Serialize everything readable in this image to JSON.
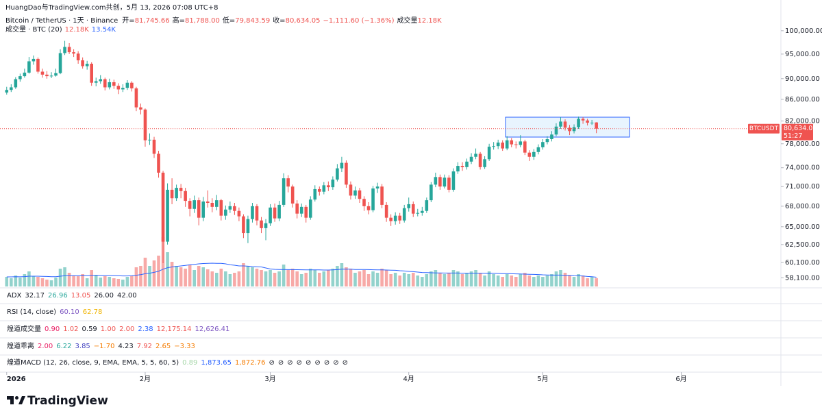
{
  "header": {
    "attribution": "HuangDao与TradingView.com共创，5月 13, 2026 07:08 UTC+8",
    "symbol": "Bitcoin / TetherUS · 1天 · Binance",
    "ohlc": [
      {
        "label": "开=",
        "value": "81,745.66"
      },
      {
        "label": "高=",
        "value": "81,788.00"
      },
      {
        "label": "低=",
        "value": "79,843.59"
      },
      {
        "label": "收=",
        "value": "80,634.05"
      }
    ],
    "change": "−1,111.60 (−1.36%)",
    "volume_label": "成交量",
    "volume": "12.18K"
  },
  "volume_legend": {
    "name": "成交量 · BTC (20)",
    "value": "12.18K",
    "ma": "13.54K"
  },
  "indicators": [
    {
      "name": "ADX",
      "values": [
        {
          "text": "32.17",
          "color": "#131722"
        },
        {
          "text": "26.96",
          "color": "#26a69a"
        },
        {
          "text": "13.05",
          "color": "#ef5350"
        },
        {
          "text": "26.00",
          "color": "#131722"
        },
        {
          "text": "42.00",
          "color": "#131722"
        }
      ]
    },
    {
      "name": "RSI (14, close)",
      "values": [
        {
          "text": "60.10",
          "color": "#7e57c2"
        },
        {
          "text": "62.78",
          "color": "#f0b400"
        }
      ]
    },
    {
      "name": "煌道成交量",
      "values": [
        {
          "text": "0.90",
          "color": "#e91e63"
        },
        {
          "text": "1.02",
          "color": "#ef5350"
        },
        {
          "text": "0.59",
          "color": "#131722"
        },
        {
          "text": "1.00",
          "color": "#ef5350"
        },
        {
          "text": "2.00",
          "color": "#ef5350"
        },
        {
          "text": "2.38",
          "color": "#2962ff"
        },
        {
          "text": "12,175.14",
          "color": "#ef5350"
        },
        {
          "text": "12,626.41",
          "color": "#7e57c2"
        }
      ]
    },
    {
      "name": "煌道乖离",
      "values": [
        {
          "text": "2.00",
          "color": "#e91e63"
        },
        {
          "text": "6.22",
          "color": "#26a69a"
        },
        {
          "text": "3.85",
          "color": "#3f3fbf"
        },
        {
          "text": "−1.70",
          "color": "#f57c00"
        },
        {
          "text": "4.23",
          "color": "#131722"
        },
        {
          "text": "7.92",
          "color": "#ef5350"
        },
        {
          "text": "2.65",
          "color": "#f57c00"
        },
        {
          "text": "−3.33",
          "color": "#f57c00"
        }
      ]
    },
    {
      "name": "煌道MACD (12, 26, close, 9, EMA, EMA, 5, 5, 60, 5)",
      "values": [
        {
          "text": "0.89",
          "color": "#a5d6a7"
        },
        {
          "text": "1,873.65",
          "color": "#2962ff"
        },
        {
          "text": "1,872.76",
          "color": "#f57c00"
        },
        {
          "text": "⊘",
          "color": "#131722"
        },
        {
          "text": "⊘",
          "color": "#131722"
        },
        {
          "text": "⊘",
          "color": "#131722"
        },
        {
          "text": "⊘",
          "color": "#131722"
        },
        {
          "text": "⊘",
          "color": "#131722"
        },
        {
          "text": "⊘",
          "color": "#131722"
        },
        {
          "text": "⊘",
          "color": "#131722"
        },
        {
          "text": "⊘",
          "color": "#131722"
        },
        {
          "text": "⊘",
          "color": "#131722"
        }
      ]
    }
  ],
  "price_tag": {
    "symbol": "BTCUSDT",
    "price": "80,634.05",
    "countdown": "51:27"
  },
  "footer": {
    "brand": "TradingView"
  },
  "chart_data": {
    "type": "candlestick",
    "log_scale": true,
    "grid": false,
    "up_color": "#26a69a",
    "down_color": "#ef5350",
    "volume_ma_color": "#2962ff",
    "ylim": [
      57000,
      103500
    ],
    "yticks": [
      {
        "value": 100000,
        "label": "100,000.00"
      },
      {
        "value": 95000,
        "label": "95,000.00"
      },
      {
        "value": 90000,
        "label": "90,000.00"
      },
      {
        "value": 86000,
        "label": "86,000.00"
      },
      {
        "value": 82000,
        "label": "82,000.00"
      },
      {
        "value": 78000,
        "label": "78,000.00"
      },
      {
        "value": 74000,
        "label": "74,000.00"
      },
      {
        "value": 71000,
        "label": "71,000.00"
      },
      {
        "value": 68000,
        "label": "68,000.00"
      },
      {
        "value": 65000,
        "label": "65,000.00"
      },
      {
        "value": 62500,
        "label": "62,500.00"
      },
      {
        "value": 60100,
        "label": "60,100.00"
      },
      {
        "value": 58100,
        "label": "58,100.00"
      }
    ],
    "xlim": [
      -1.5,
      173.3
    ],
    "xticks": [
      {
        "value": 0,
        "label": "2026"
      },
      {
        "value": 31,
        "label": "2月"
      },
      {
        "value": 59,
        "label": "3月"
      },
      {
        "value": 90,
        "label": "4月"
      },
      {
        "value": 120,
        "label": "5月"
      },
      {
        "value": 151,
        "label": "6月"
      }
    ],
    "volume_ylim": [
      0,
      100000
    ],
    "x": [
      0,
      1,
      2,
      3,
      4,
      5,
      6,
      7,
      8,
      9,
      10,
      11,
      12,
      13,
      14,
      15,
      16,
      17,
      18,
      19,
      20,
      21,
      22,
      23,
      24,
      25,
      26,
      27,
      28,
      29,
      30,
      31,
      32,
      33,
      34,
      35,
      36,
      37,
      38,
      39,
      40,
      41,
      42,
      43,
      44,
      45,
      46,
      47,
      48,
      49,
      50,
      51,
      52,
      53,
      54,
      55,
      56,
      57,
      58,
      59,
      60,
      61,
      62,
      63,
      64,
      65,
      66,
      67,
      68,
      69,
      70,
      71,
      72,
      73,
      74,
      75,
      76,
      77,
      78,
      79,
      80,
      81,
      82,
      83,
      84,
      85,
      86,
      87,
      88,
      89,
      90,
      91,
      92,
      93,
      94,
      95,
      96,
      97,
      98,
      99,
      100,
      101,
      102,
      103,
      104,
      105,
      106,
      107,
      108,
      109,
      110,
      111,
      112,
      113,
      114,
      115,
      116,
      117,
      118,
      119,
      120,
      121,
      122,
      123,
      124,
      125,
      126,
      127,
      128,
      129,
      130,
      131,
      132
    ],
    "open": [
      87300,
      87800,
      88300,
      89900,
      90500,
      91200,
      93500,
      94000,
      91400,
      90800,
      90500,
      90600,
      91100,
      95200,
      96500,
      95400,
      95100,
      93700,
      92500,
      93000,
      89200,
      89500,
      89900,
      88300,
      89300,
      88600,
      87900,
      88200,
      89200,
      88100,
      84500,
      84100,
      78600,
      78700,
      76300,
      73200,
      62900,
      70500,
      69200,
      70800,
      70300,
      68800,
      67600,
      68900,
      66300,
      68700,
      68500,
      67900,
      68900,
      66600,
      67500,
      68000,
      67300,
      66500,
      64100,
      66100,
      68000,
      65900,
      64800,
      65500,
      67800,
      66200,
      68200,
      72300,
      71000,
      68400,
      66900,
      67900,
      66300,
      69000,
      70600,
      70200,
      71200,
      70900,
      72100,
      73900,
      74800,
      71300,
      69600,
      70400,
      69100,
      68000,
      67400,
      70700,
      71000,
      68200,
      66300,
      65800,
      66600,
      65900,
      67700,
      68300,
      66900,
      67000,
      67300,
      68900,
      71300,
      72500,
      71000,
      72400,
      70500,
      73400,
      74300,
      74100,
      75000,
      75800,
      76300,
      74100,
      75400,
      77500,
      77600,
      78200,
      77200,
      78600,
      77900,
      77800,
      78400,
      76500,
      75800,
      76600,
      77400,
      78300,
      78800,
      79600,
      81000,
      81900,
      80800,
      80200,
      80900,
      82400,
      82100,
      81700,
      81745.66
    ],
    "high": [
      88400,
      88900,
      90300,
      91000,
      92000,
      94400,
      94700,
      94300,
      92000,
      91500,
      91300,
      92000,
      96000,
      97800,
      97300,
      96000,
      95600,
      94300,
      93600,
      93300,
      90200,
      90700,
      90200,
      90000,
      89800,
      89100,
      88900,
      89700,
      89500,
      88400,
      85200,
      84300,
      79800,
      79200,
      76800,
      73500,
      71500,
      72300,
      71300,
      71400,
      70800,
      69200,
      69600,
      69300,
      69400,
      70400,
      69200,
      69700,
      69100,
      68100,
      68700,
      68500,
      67800,
      66800,
      66600,
      68500,
      68300,
      66400,
      66100,
      68300,
      68400,
      68800,
      73100,
      72800,
      71300,
      68900,
      68400,
      68200,
      69500,
      71200,
      71000,
      71700,
      71800,
      72600,
      74600,
      75800,
      75200,
      71800,
      71000,
      70800,
      69500,
      68600,
      71100,
      71600,
      71400,
      68600,
      66800,
      67100,
      67000,
      68200,
      69300,
      68700,
      67600,
      67900,
      69300,
      71700,
      73200,
      72900,
      72900,
      72800,
      73900,
      74900,
      74900,
      75500,
      76400,
      77200,
      76600,
      75900,
      78000,
      78300,
      78700,
      78600,
      79300,
      79000,
      78400,
      79500,
      78700,
      76900,
      77100,
      77900,
      78800,
      79300,
      80200,
      81600,
      82700,
      82300,
      81300,
      81400,
      82800,
      82700,
      82400,
      82200,
      81788
    ],
    "low": [
      86900,
      87400,
      88000,
      89400,
      90200,
      91000,
      92800,
      91000,
      90200,
      90000,
      90100,
      90400,
      90900,
      94800,
      95000,
      94400,
      93000,
      92000,
      91800,
      88600,
      88500,
      89000,
      87700,
      87900,
      88000,
      87000,
      87400,
      87800,
      87500,
      83800,
      83200,
      77500,
      77800,
      75600,
      72400,
      60000,
      62500,
      68300,
      68800,
      69200,
      67900,
      66500,
      67000,
      65200,
      65800,
      67800,
      67100,
      67400,
      65900,
      66000,
      67000,
      66700,
      65800,
      63400,
      62700,
      65600,
      65200,
      64100,
      63100,
      65100,
      65700,
      65800,
      67900,
      70100,
      67800,
      66200,
      66400,
      65600,
      66000,
      68700,
      69600,
      69800,
      70300,
      70500,
      71800,
      73300,
      70800,
      69000,
      69100,
      68500,
      67300,
      66800,
      67100,
      70000,
      67700,
      65700,
      65100,
      65300,
      65400,
      65600,
      67200,
      66400,
      66500,
      66600,
      67000,
      68600,
      70900,
      70500,
      70700,
      70100,
      70200,
      73000,
      73500,
      73700,
      74600,
      75400,
      73700,
      73800,
      75100,
      77000,
      77100,
      76800,
      76900,
      77400,
      77200,
      77400,
      76100,
      75100,
      75300,
      76200,
      77000,
      77900,
      78400,
      79300,
      80600,
      80300,
      79500,
      79800,
      80600,
      81500,
      81200,
      81300,
      79843.59
    ],
    "close": [
      87800,
      88300,
      89900,
      90500,
      91200,
      93500,
      94000,
      91400,
      90800,
      90500,
      90600,
      91100,
      95200,
      96500,
      95400,
      95100,
      93700,
      92500,
      93000,
      89200,
      89500,
      89900,
      88300,
      89300,
      88600,
      87900,
      88200,
      89200,
      88100,
      84500,
      84100,
      78600,
      78700,
      76300,
      73200,
      62900,
      70500,
      69200,
      70800,
      70300,
      68800,
      67600,
      68900,
      66300,
      68700,
      68500,
      67900,
      68900,
      66600,
      67500,
      68000,
      67300,
      66500,
      64100,
      66100,
      68000,
      65900,
      64800,
      65500,
      67800,
      66200,
      68200,
      72300,
      71000,
      68400,
      66900,
      67900,
      66300,
      69000,
      70600,
      70200,
      71200,
      70900,
      72100,
      73900,
      74800,
      71300,
      69600,
      70400,
      69100,
      68000,
      67400,
      70700,
      71000,
      68200,
      66300,
      65800,
      66600,
      65900,
      67700,
      68300,
      66900,
      67000,
      67300,
      68900,
      71300,
      72500,
      71000,
      72400,
      70500,
      73400,
      74300,
      74100,
      75000,
      75800,
      76300,
      74100,
      75400,
      77500,
      77600,
      78200,
      77200,
      78600,
      77900,
      77800,
      78400,
      76500,
      75800,
      76600,
      77400,
      78300,
      78800,
      79600,
      81000,
      81900,
      80800,
      80200,
      80900,
      82400,
      82100,
      81700,
      81700,
      80634.05
    ],
    "volume": [
      14000,
      12000,
      16000,
      13000,
      18000,
      22000,
      15000,
      14000,
      12000,
      10000,
      9000,
      13000,
      26000,
      28000,
      20000,
      16000,
      15000,
      18000,
      12000,
      24000,
      17000,
      13000,
      15000,
      14000,
      12000,
      11000,
      10000,
      14000,
      16000,
      28000,
      30000,
      42000,
      30000,
      38000,
      45000,
      72000,
      50000,
      36000,
      30000,
      28000,
      26000,
      32000,
      24000,
      30000,
      28000,
      25000,
      22000,
      20000,
      26000,
      22000,
      18000,
      20000,
      22000,
      34000,
      30000,
      28000,
      26000,
      24000,
      22000,
      24000,
      20000,
      22000,
      32000,
      24000,
      26000,
      22000,
      18000,
      20000,
      26000,
      24000,
      20000,
      22000,
      24000,
      26000,
      30000,
      34000,
      28000,
      26000,
      20000,
      22000,
      24000,
      18000,
      22000,
      20000,
      26000,
      24000,
      18000,
      20000,
      16000,
      20000,
      18000,
      20000,
      16000,
      14000,
      18000,
      22000,
      24000,
      20000,
      18000,
      20000,
      24000,
      22000,
      18000,
      20000,
      22000,
      24000,
      20000,
      16000,
      22000,
      18000,
      16000,
      14000,
      18000,
      16000,
      14000,
      18000,
      20000,
      16000,
      14000,
      16000,
      14000,
      16000,
      18000,
      22000,
      24000,
      20000,
      16000,
      14000,
      18000,
      16000,
      12000,
      14000,
      12180
    ],
    "volume_ma": [
      14000,
      14000,
      14200,
      14100,
      14400,
      15000,
      15000,
      15000,
      14800,
      14600,
      14300,
      14300,
      15000,
      15600,
      15800,
      15800,
      15800,
      16000,
      15800,
      16200,
      16300,
      16100,
      16000,
      16000,
      15900,
      15600,
      15400,
      15400,
      15600,
      16400,
      17200,
      18600,
      19400,
      20600,
      22200,
      25200,
      27400,
      28500,
      29200,
      30000,
      30800,
      31600,
      32300,
      33000,
      33500,
      33800,
      34000,
      33800,
      33800,
      33000,
      31600,
      31000,
      30000,
      30000,
      29600,
      29000,
      28800,
      28500,
      27000,
      25500,
      25000,
      24700,
      24800,
      24600,
      24600,
      24500,
      24400,
      24200,
      24200,
      24300,
      24200,
      24000,
      24000,
      24200,
      24600,
      25200,
      25400,
      25200,
      24800,
      24800,
      24800,
      24600,
      24400,
      24200,
      24200,
      24000,
      23800,
      23600,
      23000,
      22600,
      22000,
      21600,
      21000,
      20400,
      20200,
      20000,
      19800,
      19800,
      19600,
      19600,
      19600,
      19600,
      19400,
      19400,
      19400,
      19400,
      19400,
      19200,
      19400,
      19200,
      19000,
      18800,
      18800,
      18600,
      18400,
      18200,
      18000,
      17800,
      17600,
      17400,
      17000,
      16800,
      16600,
      16600,
      16600,
      16400,
      16200,
      15800,
      15600,
      15200,
      14600,
      14200,
      13540
    ]
  }
}
